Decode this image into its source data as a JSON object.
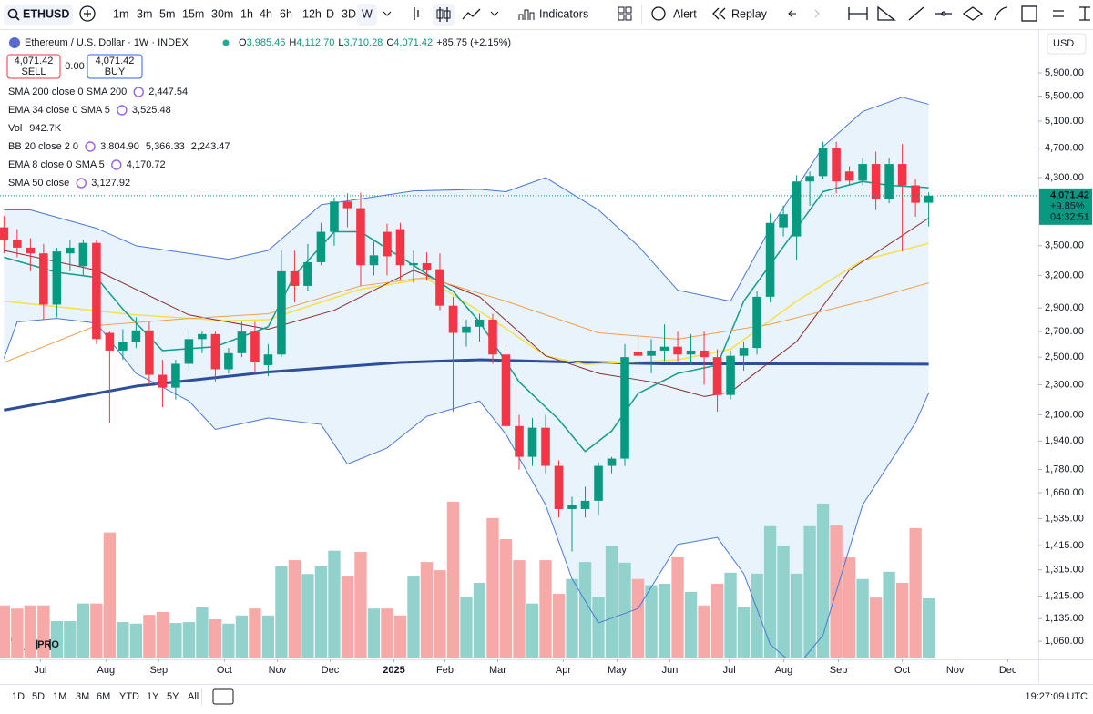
{
  "toolbar": {
    "symbol": "ETHUSD",
    "intervals": [
      "1m",
      "3m",
      "5m",
      "15m",
      "30m",
      "1h",
      "4h",
      "6h",
      "12h",
      "D",
      "3D",
      "W"
    ],
    "buttons": [
      "Indicators",
      "Alert",
      "Replay"
    ]
  },
  "header": {
    "title": "Ethereum / U.S. Dollar · 1W · INDEX",
    "ohlc": [
      {
        "key": "O",
        "value": "3,985.46"
      },
      {
        "key": "H",
        "value": "4,112.70"
      },
      {
        "key": "L",
        "value": "3,710.28"
      },
      {
        "key": "C",
        "value": "4,071.42"
      }
    ],
    "change": "+85.75 (+2.15%)",
    "sell_price": "4,071.42",
    "sell_label": "SELL",
    "spread": "0.00",
    "buy_price": "4,071.42",
    "buy_label": "BUY",
    "currency": "USD"
  },
  "price_tag": {
    "price": "4,071.42",
    "change": "+9.85%",
    "countdown": "04:32:51"
  },
  "bottom_bar": {
    "ranges": [
      "1D",
      "5D",
      "1M",
      "3M",
      "6M",
      "YTD",
      "1Y",
      "5Y",
      "All"
    ],
    "clock": "19:27:09 UTC"
  },
  "logo": {
    "badge": "PRO"
  },
  "chart_data": {
    "type": "candlestick",
    "log_scale": true,
    "grid": false,
    "up_color": "#089981",
    "down_color": "#f23645",
    "xlim": [
      -0.3,
      78.3
    ],
    "ylim": [
      1009,
      6677
    ],
    "xticks": [
      {
        "value": 2.76,
        "label": "Jul"
      },
      {
        "value": 7.72,
        "label": "Aug"
      },
      {
        "value": 11.72,
        "label": "Sep"
      },
      {
        "value": 16.69,
        "label": "Oct"
      },
      {
        "value": 20.69,
        "label": "Nov"
      },
      {
        "value": 24.69,
        "label": "Dec"
      },
      {
        "value": 29.52,
        "label": "2025"
      },
      {
        "value": 33.38,
        "label": "Feb"
      },
      {
        "value": 37.38,
        "label": "Mar"
      },
      {
        "value": 42.34,
        "label": "Apr"
      },
      {
        "value": 46.41,
        "label": "May"
      },
      {
        "value": 50.41,
        "label": "Jun"
      },
      {
        "value": 54.9,
        "label": "Jul"
      },
      {
        "value": 59.03,
        "label": "Aug"
      },
      {
        "value": 63.17,
        "label": "Sep"
      },
      {
        "value": 68.0,
        "label": "Oct"
      },
      {
        "value": 72.0,
        "label": "Nov"
      },
      {
        "value": 76.0,
        "label": "Dec"
      }
    ],
    "yticks": [
      {
        "value": 5900,
        "label": "5,900.00"
      },
      {
        "value": 5500,
        "label": "5,500.00"
      },
      {
        "value": 5100,
        "label": "5,100.00"
      },
      {
        "value": 4700,
        "label": "4,700.00"
      },
      {
        "value": 4300,
        "label": "4,300.00"
      },
      {
        "value": 3500,
        "label": "3,500.00"
      },
      {
        "value": 3200,
        "label": "3,200.00"
      },
      {
        "value": 2900,
        "label": "2,900.00"
      },
      {
        "value": 2700,
        "label": "2,700.00"
      },
      {
        "value": 2500,
        "label": "2,500.00"
      },
      {
        "value": 2300,
        "label": "2,300.00"
      },
      {
        "value": 2100,
        "label": "2,100.00"
      },
      {
        "value": 1940,
        "label": "1,940.00"
      },
      {
        "value": 1780,
        "label": "1,780.00"
      },
      {
        "value": 1660,
        "label": "1,660.00"
      },
      {
        "value": 1535,
        "label": "1,535.00"
      },
      {
        "value": 1415,
        "label": "1,415.00"
      },
      {
        "value": 1315,
        "label": "1,315.00"
      },
      {
        "value": 1215,
        "label": "1,215.00"
      },
      {
        "value": 1135,
        "label": "1,135.00"
      },
      {
        "value": 1060,
        "label": "1,060.00"
      }
    ],
    "candles": {
      "open": [
        3700,
        3560,
        3480,
        3420,
        2930,
        3420,
        3290,
        3530,
        2690,
        2550,
        2620,
        2710,
        2370,
        2280,
        2450,
        2640,
        2680,
        2410,
        2530,
        2700,
        2440,
        2520,
        3240,
        3100,
        3330,
        3650,
        4000,
        3920,
        3300,
        3650,
        3680,
        3300,
        3320,
        3260,
        2920,
        2690,
        2740,
        2800,
        2520,
        2030,
        1850,
        2020,
        1800,
        1580,
        1580,
        1620,
        1800,
        1840,
        2540,
        2510,
        2550,
        2580,
        2520,
        2550,
        2500,
        2230,
        2510,
        2570,
        3000,
        3700,
        3600,
        4250,
        4320,
        4700,
        4380,
        4260,
        4480,
        4030,
        4480,
        4200,
        3985.46
      ],
      "high": [
        3830,
        3680,
        3580,
        3520,
        3480,
        3560,
        3560,
        3560,
        2700,
        2720,
        2820,
        2780,
        2480,
        2480,
        2720,
        2700,
        2700,
        2570,
        2780,
        2780,
        2600,
        3450,
        3450,
        3520,
        3750,
        4050,
        4100,
        4110,
        3550,
        3740,
        3750,
        3450,
        3430,
        3420,
        3000,
        2800,
        2850,
        2850,
        2560,
        2100,
        2080,
        2100,
        1830,
        1640,
        1690,
        1820,
        1850,
        2600,
        2680,
        2640,
        2760,
        2700,
        2680,
        2700,
        2560,
        2550,
        2620,
        3050,
        3860,
        3950,
        4330,
        4380,
        4790,
        4790,
        4450,
        4560,
        4650,
        4560,
        4760,
        4280,
        4112.7
      ],
      "low": [
        3420,
        3380,
        3240,
        2800,
        2820,
        3240,
        3200,
        2600,
        2050,
        2480,
        2570,
        2300,
        2150,
        2200,
        2400,
        2530,
        2320,
        2380,
        2500,
        2380,
        2360,
        2500,
        2950,
        3050,
        3300,
        3500,
        3700,
        3100,
        3200,
        3200,
        3150,
        3130,
        3150,
        2880,
        2120,
        2580,
        2620,
        2450,
        1990,
        1780,
        1800,
        1760,
        1540,
        1390,
        1540,
        1550,
        1760,
        1800,
        2450,
        2380,
        2470,
        2470,
        2440,
        2300,
        2120,
        2200,
        2400,
        2520,
        2950,
        3600,
        3350,
        3950,
        4280,
        4100,
        4210,
        4200,
        3900,
        3980,
        3440,
        3820,
        3710.28
      ],
      "close": [
        3560,
        3480,
        3420,
        2930,
        3440,
        3480,
        3530,
        2640,
        2550,
        2620,
        2710,
        2370,
        2280,
        2450,
        2640,
        2680,
        2410,
        2530,
        2700,
        2460,
        2520,
        3240,
        3100,
        3330,
        3650,
        4000,
        3920,
        3300,
        3400,
        3390,
        3300,
        3320,
        3250,
        2920,
        2690,
        2740,
        2800,
        2520,
        2030,
        1850,
        2020,
        1800,
        1580,
        1600,
        1620,
        1800,
        1840,
        2500,
        2510,
        2550,
        2580,
        2520,
        2550,
        2500,
        2230,
        2510,
        2570,
        3000,
        3750,
        3850,
        4250,
        4320,
        4700,
        4250,
        4260,
        4480,
        4030,
        4480,
        4200,
        3985,
        4071.42
      ]
    },
    "volume": {
      "name": "Vol",
      "readout": "942.7K",
      "ylim": [
        0,
        3000
      ],
      "up_color": "#92d2cc",
      "down_color": "#f7a9a7",
      "values": [
        830,
        780,
        830,
        830,
        580,
        580,
        860,
        860,
        1990,
        565,
        540,
        680,
        725,
        550,
        565,
        800,
        610,
        540,
        670,
        780,
        670,
        1450,
        1550,
        1330,
        1450,
        1700,
        1300,
        1680,
        780,
        780,
        670,
        1300,
        1520,
        1390,
        2480,
        970,
        1190,
        2220,
        1885,
        1550,
        860,
        1550,
        1015,
        1250,
        1520,
        970,
        1770,
        1510,
        1250,
        1150,
        1175,
        1595,
        1045,
        830,
        1175,
        1350,
        810,
        1335,
        2090,
        1770,
        1335,
        2090,
        2450,
        2100,
        1595,
        1250,
        955,
        1365,
        1190,
        2060,
        942.7
      ]
    },
    "band_fill": "#e3f0fb",
    "indicators": [
      {
        "name": "SMA 200 close 0 SMA 200",
        "readouts": [
          "2,447.54"
        ],
        "readout_colors": [
          "#2962ff"
        ],
        "lines": [
          {
            "color": "#2d4f9b",
            "width": 3,
            "x": [
              0,
              10,
              20,
              30,
              36,
              42,
              50,
              60,
              70
            ],
            "values": [
              2130,
              2290,
              2390,
              2460,
              2480,
              2465,
              2450,
              2450,
              2447.54
            ]
          }
        ]
      },
      {
        "name": "EMA 34 close 0 SMA 5",
        "readouts": [
          "3,525.48"
        ],
        "readout_colors": [
          "#f2d93a"
        ],
        "lines": [
          {
            "color": "#f5e04b",
            "width": 1.5,
            "x": [
              0,
              10,
              17,
              20,
              27,
              32,
              37,
              41,
              44,
              51,
              55,
              60,
              65,
              70
            ],
            "values": [
              2960,
              2840,
              2790,
              2800,
              3070,
              3170,
              2800,
              2510,
              2445,
              2480,
              2560,
              2960,
              3350,
              3525.48
            ]
          }
        ]
      },
      {
        "name": "Vol",
        "readouts": [
          "942.7K"
        ],
        "readout_colors": [
          "#22ab94"
        ],
        "lines": []
      },
      {
        "name": "BB 20 close 2 0",
        "readouts": [
          "3,804.90",
          "5,366.33",
          "2,243.47"
        ],
        "readout_colors": [
          "#8b2c2c",
          "#2962ff",
          "#2962ff"
        ],
        "lines": [
          {
            "color": "#8b2c2c",
            "width": 1,
            "x": [
              0,
              7,
              14,
              20,
              25,
              31,
              36,
              41,
              45,
              49,
              53,
              55,
              60,
              64,
              70
            ],
            "values": [
              3450,
              3250,
              2840,
              2720,
              2880,
              3250,
              3000,
              2510,
              2380,
              2320,
              2220,
              2250,
              2620,
              3250,
              3804.9
            ]
          },
          {
            "color": "#4a78d6",
            "width": 1,
            "x": [
              0,
              2,
              7,
              10,
              17,
              20,
              24,
              31,
              36,
              38,
              41,
              45,
              48,
              51,
              55,
              58,
              62,
              65,
              68,
              70
            ],
            "values": [
              3900,
              3900,
              3690,
              3500,
              3360,
              3450,
              3960,
              4130,
              4150,
              4120,
              4300,
              3900,
              3500,
              3060,
              2960,
              3690,
              4720,
              5250,
              5480,
              5366.33
            ]
          },
          {
            "color": "#4a78d6",
            "width": 1,
            "x": [
              0,
              1,
              4,
              7,
              10,
              14,
              16,
              20,
              24,
              26,
              29,
              32,
              36,
              38,
              41,
              43,
              45,
              48,
              51,
              54,
              56,
              58,
              60,
              62,
              65,
              69,
              70
            ],
            "values": [
              2490,
              2780,
              2810,
              2770,
              2380,
              2190,
              2010,
              2080,
              2040,
              1810,
              1900,
              2090,
              2190,
              1980,
              1600,
              1280,
              1120,
              1170,
              1420,
              1450,
              1300,
              1050,
              980,
              1080,
              1600,
              2050,
              2243.47
            ]
          }
        ]
      },
      {
        "name": "EMA 8 close 0 SMA 5",
        "readouts": [
          "4,170.72"
        ],
        "readout_colors": [
          "#149c8c"
        ],
        "lines": [
          {
            "color": "#149c8c",
            "width": 1.5,
            "x": [
              0,
              4,
              7,
              9,
              12,
              16,
              20,
              22,
              25,
              27,
              31,
              34,
              36,
              39,
              42,
              44,
              46,
              48,
              51,
              54,
              56,
              59,
              62,
              65,
              67,
              70
            ],
            "values": [
              3380,
              3230,
              3180,
              2890,
              2550,
              2580,
              2740,
              3200,
              3650,
              3650,
              3300,
              3050,
              2780,
              2320,
              2070,
              1880,
              2000,
              2240,
              2380,
              2440,
              2960,
              3490,
              4120,
              4250,
              4200,
              4170.72
            ]
          }
        ]
      },
      {
        "name": "SMA 50 close",
        "readouts": [
          "3,127.92"
        ],
        "readout_colors": [
          "#f0a050"
        ],
        "lines": [
          {
            "color": "#f0a050",
            "width": 1,
            "x": [
              0,
              7,
              14,
              20,
              27,
              32,
              38,
              45,
              51,
              58,
              65,
              70
            ],
            "values": [
              2460,
              2750,
              2810,
              2850,
              3100,
              3180,
              2960,
              2690,
              2640,
              2760,
              2960,
              3127.92
            ]
          }
        ]
      }
    ]
  }
}
